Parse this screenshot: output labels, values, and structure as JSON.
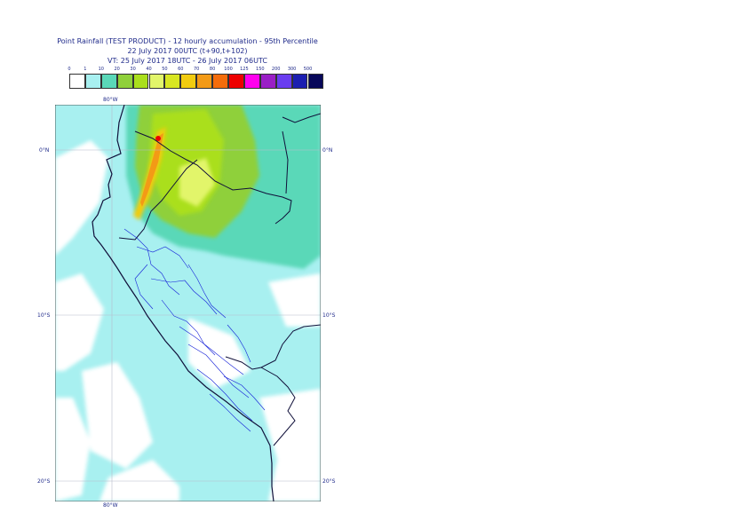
{
  "header": {
    "line1": "Point Rainfall (TEST PRODUCT) - 12 hourly accumulation - 95th Percentile",
    "line2": "22 July 2017 00UTC (t+90,t+102)",
    "line3": "VT: 25 July 2017 18UTC - 26 July 2017 06UTC"
  },
  "legend": {
    "ticks": [
      "0",
      "1",
      "10",
      "20",
      "30",
      "40",
      "50",
      "60",
      "70",
      "80",
      "100",
      "125",
      "150",
      "200",
      "300",
      "500"
    ],
    "colors": [
      "#ffffff",
      "#a8f0f0",
      "#5ad8b8",
      "#8fd03a",
      "#aadf1c",
      "#e2f56a",
      "#d8e622",
      "#f2cc10",
      "#f39a16",
      "#f46c0a",
      "#ee0000",
      "#ff00ee",
      "#9a1fc6",
      "#6a3df0",
      "#1c1fb0",
      "#08085a"
    ]
  },
  "axes": {
    "lon_top": "80°W",
    "lon_bottom": "80°W",
    "lat_0_left": "0°N",
    "lat_0_right": "0°N",
    "lat_10_left": "10°S",
    "lat_10_right": "10°S",
    "lat_20_left": "20°S",
    "lat_20_right": "20°S"
  }
}
